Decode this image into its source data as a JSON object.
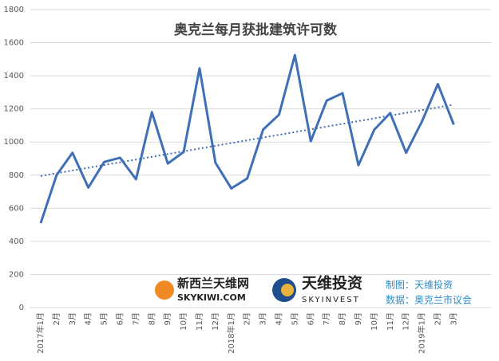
{
  "chart_data": {
    "type": "line",
    "title": "奥克兰每月获批建筑许可数",
    "categories": [
      "2017年1月",
      "2月",
      "3月",
      "4月",
      "5月",
      "6月",
      "7月",
      "8月",
      "9月",
      "10月",
      "11月",
      "12月",
      "2018年1月",
      "2月",
      "3月",
      "4月",
      "5月",
      "6月",
      "7月",
      "8月",
      "9月",
      "10月",
      "11月",
      "12月",
      "2019年1月",
      "2月",
      "3月"
    ],
    "values": [
      510,
      800,
      935,
      725,
      880,
      905,
      775,
      1180,
      870,
      940,
      1445,
      875,
      720,
      780,
      1075,
      1165,
      1525,
      1005,
      1250,
      1295,
      860,
      1075,
      1175,
      935,
      1125,
      1350,
      1105
    ],
    "color": "#3f6fb6",
    "trendline": true,
    "ylim": [
      0,
      1800
    ],
    "yticks": [
      0,
      200,
      400,
      600,
      800,
      1000,
      1200,
      1400,
      1600,
      1800
    ],
    "grid": true
  },
  "branding": {
    "logo1_cn": "新西兰天维网",
    "logo1_en": "SKYKIWI.COM",
    "logo2_cn": "天维投资",
    "logo2_en": "SKYINVEST",
    "credit_chart": "制图：天维投资",
    "credit_data": "数据：奥克兰市议会"
  }
}
